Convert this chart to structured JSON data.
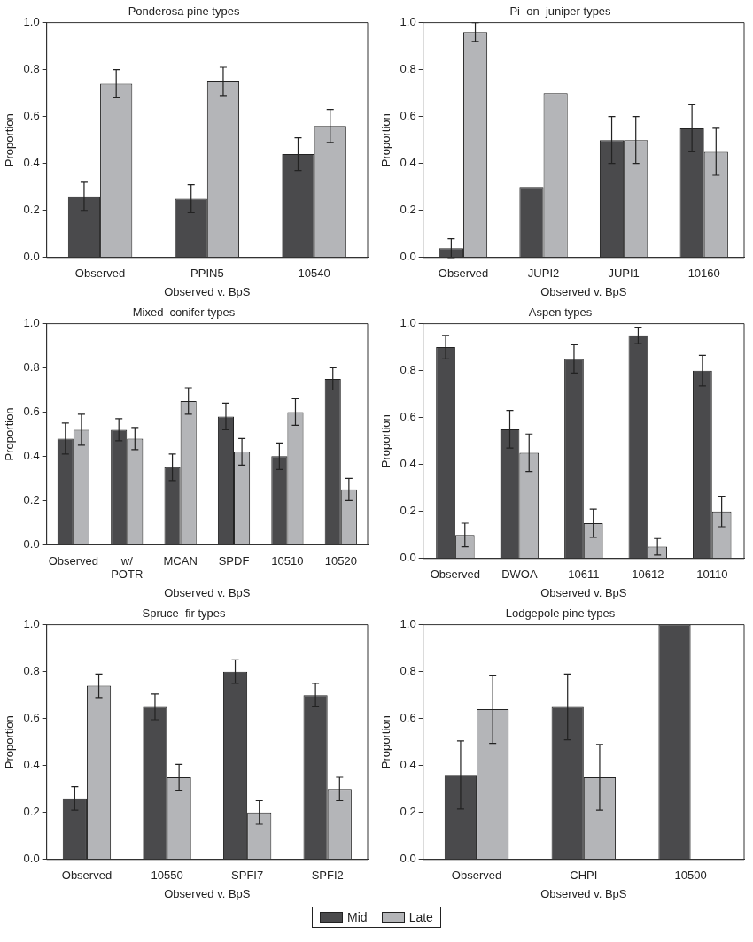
{
  "chart_data": [
    {
      "type": "bar",
      "title": "Ponderosa pine types",
      "xlabel": "Observed v. BpS",
      "ylabel": "Proportion",
      "categories": [
        "Observed",
        "PPIN5",
        "10540"
      ],
      "series": [
        {
          "name": "Mid",
          "color": "#4a4a4c",
          "values": [
            0.26,
            0.25,
            0.44
          ],
          "errors": [
            0.06,
            0.06,
            0.07
          ]
        },
        {
          "name": "Late",
          "color": "#b4b5b8",
          "values": [
            0.74,
            0.75,
            0.56
          ],
          "errors": [
            0.06,
            0.06,
            0.07
          ]
        }
      ],
      "ylim": [
        0,
        1
      ],
      "yticks": [
        {
          "value": 0,
          "label": "0.0"
        },
        {
          "value": 0.2,
          "label": "0.2"
        },
        {
          "value": 0.4,
          "label": "0.4"
        },
        {
          "value": 0.6,
          "label": "0.6"
        },
        {
          "value": 0.8,
          "label": "0.8"
        },
        {
          "value": 1,
          "label": "1.0"
        }
      ],
      "grid": false,
      "legend": "bottom"
    },
    {
      "type": "bar",
      "title": "Pi  on–juniper types",
      "xlabel": "Observed v. BpS",
      "ylabel": "Proportion",
      "categories": [
        "Observed",
        "JUPI2",
        "JUPI1",
        "10160"
      ],
      "series": [
        {
          "color": "#4a4a4c",
          "values": [
            0.04,
            0.3,
            0.5,
            0.55
          ],
          "errors": [
            0.04,
            null,
            0.1,
            0.1
          ]
        },
        {
          "color": "#b4b5b8",
          "values": [
            0.96,
            0.7,
            0.5,
            0.45
          ],
          "errors": [
            0.04,
            null,
            0.1,
            0.1
          ]
        }
      ],
      "ylim": [
        0,
        1
      ],
      "yticks": [
        {
          "value": 0,
          "label": "0.0"
        },
        {
          "value": 0.2,
          "label": "0.2"
        },
        {
          "value": 0.4,
          "label": "0.4"
        },
        {
          "value": 0.6,
          "label": "0.6"
        },
        {
          "value": 0.8,
          "label": "0.8"
        },
        {
          "value": 1,
          "label": "1.0"
        }
      ],
      "grid": false
    },
    {
      "type": "bar",
      "title": "Mixed–conifer types",
      "xlabel": "Observed v. BpS",
      "ylabel": "Proportion",
      "categories": [
        "Observed",
        "w/\nPOTR",
        "MCAN",
        "SPDF",
        "10510",
        "10520"
      ],
      "series": [
        {
          "color": "#4a4a4c",
          "values": [
            0.48,
            0.52,
            0.35,
            0.58,
            0.4,
            0.75
          ],
          "errors": [
            0.07,
            0.05,
            0.06,
            0.06,
            0.06,
            0.05
          ]
        },
        {
          "color": "#b4b5b8",
          "values": [
            0.52,
            0.48,
            0.65,
            0.42,
            0.6,
            0.25
          ],
          "errors": [
            0.07,
            0.05,
            0.06,
            0.06,
            0.06,
            0.05
          ]
        }
      ],
      "ylim": [
        0,
        1
      ],
      "yticks": [
        {
          "value": 0,
          "label": "0.0"
        },
        {
          "value": 0.2,
          "label": "0.2"
        },
        {
          "value": 0.4,
          "label": "0.4"
        },
        {
          "value": 0.6,
          "label": "0.6"
        },
        {
          "value": 0.8,
          "label": "0.8"
        },
        {
          "value": 1,
          "label": "1.0"
        }
      ],
      "grid": false
    },
    {
      "type": "bar",
      "title": "Aspen types",
      "xlabel": "Observed v. BpS",
      "ylabel": "Proportion",
      "categories": [
        "Observed",
        "DWOA",
        "10611",
        "10612",
        "10110"
      ],
      "series": [
        {
          "color": "#4a4a4c",
          "values": [
            0.9,
            0.55,
            0.85,
            0.95,
            0.8
          ],
          "errors": [
            0.05,
            0.08,
            0.06,
            0.035,
            0.065
          ]
        },
        {
          "color": "#b4b5b8",
          "values": [
            0.1,
            0.45,
            0.15,
            0.05,
            0.2
          ],
          "errors": [
            0.05,
            0.08,
            0.06,
            0.035,
            0.065
          ]
        }
      ],
      "ylim": [
        0,
        1
      ],
      "yticks": [
        {
          "value": 0,
          "label": "0.0"
        },
        {
          "value": 0.2,
          "label": "0.2"
        },
        {
          "value": 0.4,
          "label": "0.4"
        },
        {
          "value": 0.6,
          "label": "0.6"
        },
        {
          "value": 0.8,
          "label": "0.8"
        },
        {
          "value": 1,
          "label": "1.0"
        }
      ],
      "grid": false
    },
    {
      "type": "bar",
      "title": "Spruce–fir types",
      "xlabel": "Observed v. BpS",
      "ylabel": "Proportion",
      "categories": [
        "Observed",
        "10550",
        "SPFI7",
        "SPFI2"
      ],
      "series": [
        {
          "color": "#4a4a4c",
          "values": [
            0.26,
            0.65,
            0.8,
            0.7
          ],
          "errors": [
            0.05,
            0.055,
            0.05,
            0.05
          ]
        },
        {
          "color": "#b4b5b8",
          "values": [
            0.74,
            0.35,
            0.2,
            0.3
          ],
          "errors": [
            0.05,
            0.055,
            0.05,
            0.05
          ]
        }
      ],
      "ylim": [
        0,
        1
      ],
      "yticks": [
        {
          "value": 0,
          "label": "0.0"
        },
        {
          "value": 0.2,
          "label": "0.2"
        },
        {
          "value": 0.4,
          "label": "0.4"
        },
        {
          "value": 0.6,
          "label": "0.6"
        },
        {
          "value": 0.8,
          "label": "0.8"
        },
        {
          "value": 1,
          "label": "1.0"
        }
      ],
      "grid": false
    },
    {
      "type": "bar",
      "title": "Lodgepole pine types",
      "xlabel": "Observed v. BpS",
      "ylabel": "Proportion",
      "categories": [
        "Observed",
        "CHPI",
        "10500"
      ],
      "series": [
        {
          "color": "#4a4a4c",
          "values": [
            0.36,
            0.65,
            1.0
          ],
          "errors": [
            0.145,
            0.14,
            null
          ]
        },
        {
          "color": "#b4b5b8",
          "values": [
            0.64,
            0.35,
            0
          ],
          "errors": [
            0.145,
            0.14,
            null
          ]
        }
      ],
      "ylim": [
        0,
        1
      ],
      "yticks": [
        {
          "value": 0,
          "label": "0.0"
        },
        {
          "value": 0.2,
          "label": "0.2"
        },
        {
          "value": 0.4,
          "label": "0.4"
        },
        {
          "value": 0.6,
          "label": "0.6"
        },
        {
          "value": 0.8,
          "label": "0.8"
        },
        {
          "value": 1,
          "label": "1.0"
        }
      ],
      "grid": false
    }
  ]
}
